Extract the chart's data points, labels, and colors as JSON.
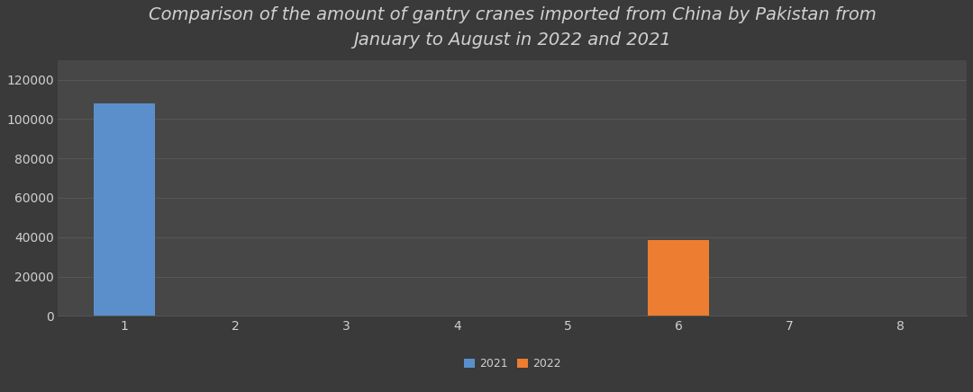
{
  "title": "Comparison of the amount of gantry cranes imported from China by Pakistan from\nJanuary to August in 2022 and 2021",
  "categories": [
    1,
    2,
    3,
    4,
    5,
    6,
    7,
    8
  ],
  "values_2021": [
    108000,
    0,
    0,
    0,
    0,
    0,
    0,
    0
  ],
  "values_2022": [
    0,
    0,
    0,
    0,
    0,
    38500,
    0,
    0
  ],
  "color_2021": "#5B8FCC",
  "color_2022": "#ED7D31",
  "background_color": "#3a3a3a",
  "axes_background": "#474747",
  "text_color": "#d0d0d0",
  "grid_color": "#5a5a5a",
  "ylim": [
    0,
    130000
  ],
  "yticks": [
    0,
    20000,
    40000,
    60000,
    80000,
    100000,
    120000
  ],
  "legend_labels": [
    "2021",
    "2022"
  ],
  "bar_width": 0.55,
  "title_fontsize": 14,
  "tick_fontsize": 10,
  "legend_fontsize": 9
}
